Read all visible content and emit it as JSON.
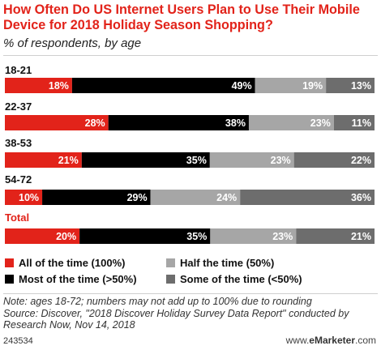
{
  "title": "How Often Do US Internet Users Plan to Use Their Mobile Device for 2018 Holiday Season Shopping?",
  "subtitle": "% of respondents, by age",
  "colors": {
    "all_of_the_time": "#e2231a",
    "most_of_the_time": "#000000",
    "half_the_time": "#a6a6a6",
    "some_of_the_time": "#6d6d6d",
    "title": "#e2231a"
  },
  "chart_data": {
    "type": "bar",
    "orientation": "horizontal",
    "stacked": true,
    "categories": [
      "18-21",
      "22-37",
      "38-53",
      "54-72",
      "Total"
    ],
    "series": [
      {
        "name": "All of the time (100%)",
        "values": [
          18,
          28,
          21,
          10,
          20
        ]
      },
      {
        "name": "Most of the time (>50%)",
        "values": [
          49,
          38,
          35,
          29,
          35
        ]
      },
      {
        "name": "Half the time (50%)",
        "values": [
          19,
          23,
          23,
          24,
          23
        ]
      },
      {
        "name": "Some of the time (<50%)",
        "values": [
          13,
          11,
          22,
          36,
          21
        ]
      }
    ],
    "value_suffix": "%",
    "legend_position": "bottom"
  },
  "legend": [
    "All of the time (100%)",
    "Half the time (50%)",
    "Most of the time (>50%)",
    "Some of the time (<50%)"
  ],
  "note": "Note: ages 18-72; numbers may not add up to 100% due to rounding",
  "source": "Source: Discover, \"2018 Discover Holiday Survey Data Report\" conducted by Research Now, Nov 14, 2018",
  "chart_id": "243534",
  "brand_prefix": "www.",
  "brand_name": "eMarketer",
  "brand_suffix": ".com"
}
